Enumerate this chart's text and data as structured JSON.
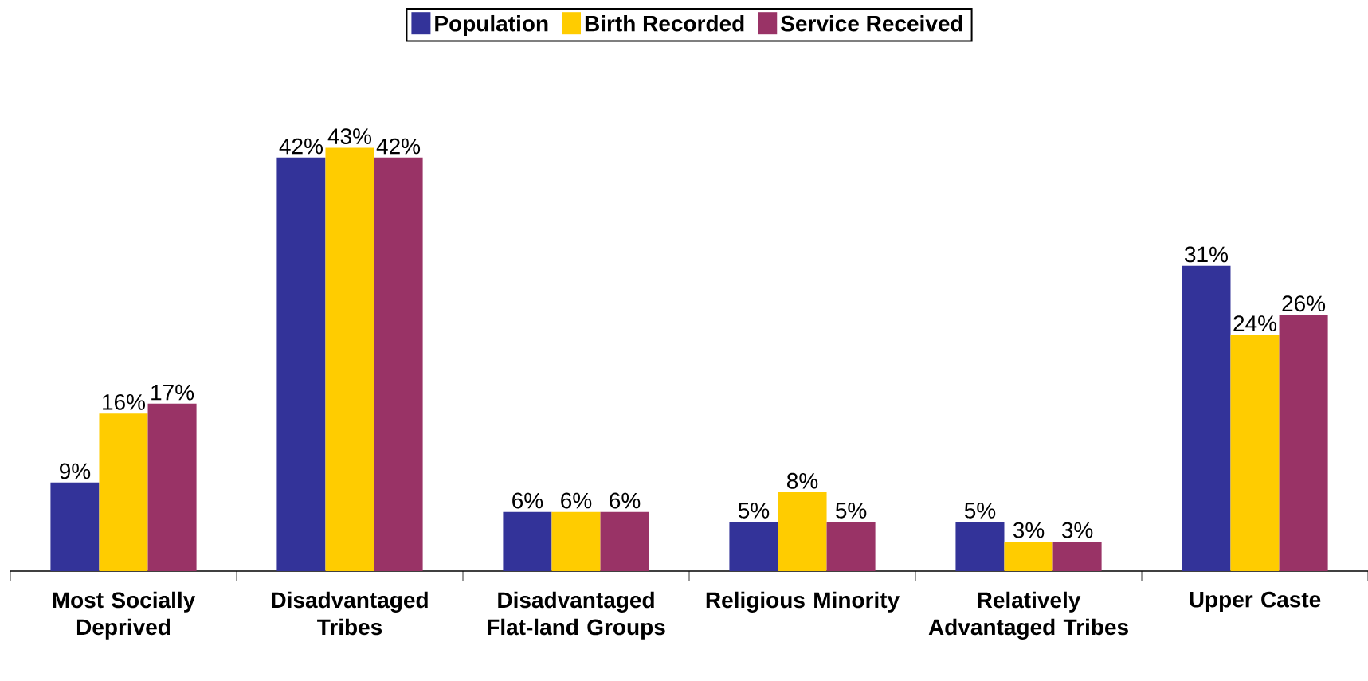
{
  "chart_data": {
    "type": "bar",
    "categories": [
      "Most Socially Deprived",
      "Disadvantaged Tribes",
      "Disadvantaged Flat-land Groups",
      "Religious Minority",
      "Relatively Advantaged Tribes",
      "Upper Caste"
    ],
    "series": [
      {
        "name": "Population",
        "color": "#333399",
        "values": [
          9,
          42,
          6,
          5,
          5,
          31
        ],
        "value_labels": [
          "9%",
          "42%",
          "6%",
          "5%",
          "5%",
          "31%"
        ]
      },
      {
        "name": "Birth Recorded",
        "color": "#ffcc00",
        "values": [
          16,
          43,
          6,
          8,
          3,
          24
        ],
        "value_labels": [
          "16%",
          "43%",
          "6%",
          "8%",
          "3%",
          "24%"
        ]
      },
      {
        "name": "Service Received",
        "color": "#993366",
        "values": [
          17,
          42,
          6,
          5,
          3,
          26
        ],
        "value_labels": [
          "17%",
          "42%",
          "6%",
          "5%",
          "3%",
          "26%"
        ]
      }
    ],
    "legend": "top"
  }
}
